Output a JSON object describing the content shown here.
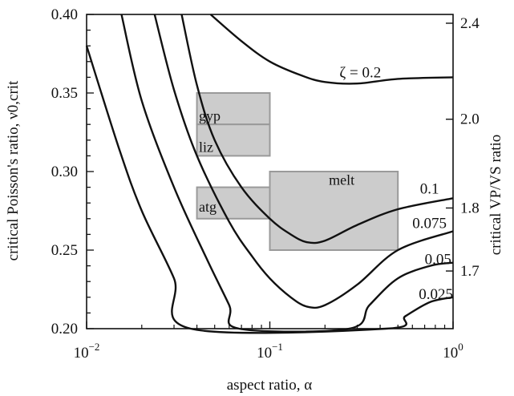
{
  "chart_data": {
    "type": "line",
    "xlabel": "aspect ratio, α",
    "ylabel": "critical Poisson's ratio, ν0,crit",
    "ylabel_right": "critical VP/VS ratio",
    "xscale": "log",
    "xlim": [
      0.01,
      1
    ],
    "ylim": [
      0.2,
      0.4
    ],
    "x_ticks": [
      {
        "value": 0.01,
        "base": "10",
        "exp": "−2"
      },
      {
        "value": 0.1,
        "base": "10",
        "exp": "−1"
      },
      {
        "value": 1,
        "base": "10",
        "exp": "0"
      }
    ],
    "y_ticks": [
      "0.20",
      "0.25",
      "0.30",
      "0.35",
      "0.40"
    ],
    "y2_ticks": [
      {
        "label": "1.7",
        "nu": 0.2367
      },
      {
        "label": "1.8",
        "nu": 0.2768
      },
      {
        "label": "2.0",
        "nu": 0.3333
      },
      {
        "label": "2.4",
        "nu": 0.3944
      }
    ],
    "series": [
      {
        "name": "ζ = 0.2",
        "label_x": 0.24,
        "label_y": 0.36,
        "points": [
          [
            0.0475,
            0.4
          ],
          [
            0.07,
            0.383
          ],
          [
            0.1,
            0.37
          ],
          [
            0.15,
            0.361
          ],
          [
            0.2,
            0.357
          ],
          [
            0.3,
            0.356
          ],
          [
            0.5,
            0.359
          ],
          [
            1,
            0.36
          ]
        ]
      },
      {
        "name": "0.1",
        "label_x": 0.66,
        "label_y": 0.286,
        "points": [
          [
            0.033,
            0.4
          ],
          [
            0.04,
            0.355
          ],
          [
            0.05,
            0.32
          ],
          [
            0.07,
            0.29
          ],
          [
            0.1,
            0.27
          ],
          [
            0.13,
            0.26
          ],
          [
            0.16,
            0.255
          ],
          [
            0.2,
            0.256
          ],
          [
            0.3,
            0.266
          ],
          [
            0.5,
            0.276
          ],
          [
            1,
            0.283
          ]
        ]
      },
      {
        "name": "0.075",
        "label_x": 0.6,
        "label_y": 0.264,
        "points": [
          [
            0.0235,
            0.4
          ],
          [
            0.03,
            0.352
          ],
          [
            0.04,
            0.31
          ],
          [
            0.06,
            0.268
          ],
          [
            0.08,
            0.246
          ],
          [
            0.1,
            0.232
          ],
          [
            0.13,
            0.22
          ],
          [
            0.16,
            0.214
          ],
          [
            0.2,
            0.215
          ],
          [
            0.3,
            0.228
          ],
          [
            0.5,
            0.25
          ],
          [
            1,
            0.262
          ]
        ]
      },
      {
        "name": "0.05",
        "label_x": 0.7,
        "label_y": 0.241,
        "points": [
          [
            0.0155,
            0.4
          ],
          [
            0.02,
            0.345
          ],
          [
            0.03,
            0.29
          ],
          [
            0.045,
            0.245
          ],
          [
            0.06,
            0.215
          ],
          [
            0.068,
            0.2
          ],
          [
            0.27,
            0.2
          ],
          [
            0.35,
            0.215
          ],
          [
            0.5,
            0.232
          ],
          [
            0.75,
            0.24
          ],
          [
            1,
            0.242
          ]
        ]
      },
      {
        "name": "0.025",
        "label_x": 0.65,
        "label_y": 0.219,
        "points": [
          [
            0.01,
            0.38
          ],
          [
            0.015,
            0.315
          ],
          [
            0.02,
            0.275
          ],
          [
            0.03,
            0.232
          ],
          [
            0.037,
            0.2
          ],
          [
            0.43,
            0.2
          ],
          [
            0.55,
            0.208
          ],
          [
            0.75,
            0.217
          ],
          [
            1,
            0.22
          ]
        ]
      }
    ],
    "boxes": [
      {
        "label": "gyp",
        "x0": 0.04,
        "x1": 0.1,
        "y0": 0.33,
        "y1": 0.35,
        "label_x": 0.041,
        "label_y": 0.3325
      },
      {
        "label": "liz",
        "x0": 0.04,
        "x1": 0.1,
        "y0": 0.31,
        "y1": 0.33,
        "label_x": 0.041,
        "label_y": 0.3125
      },
      {
        "label": "atg",
        "x0": 0.04,
        "x1": 0.1,
        "y0": 0.27,
        "y1": 0.29,
        "label_x": 0.041,
        "label_y": 0.2745
      },
      {
        "label": "melt",
        "x0": 0.1,
        "x1": 0.5,
        "y0": 0.25,
        "y1": 0.3,
        "label_x": 0.21,
        "label_y": 0.2915
      }
    ],
    "colors": {
      "curve": "#111111",
      "box_fill": "#cccccc",
      "box_stroke": "#9a9a9a"
    }
  }
}
